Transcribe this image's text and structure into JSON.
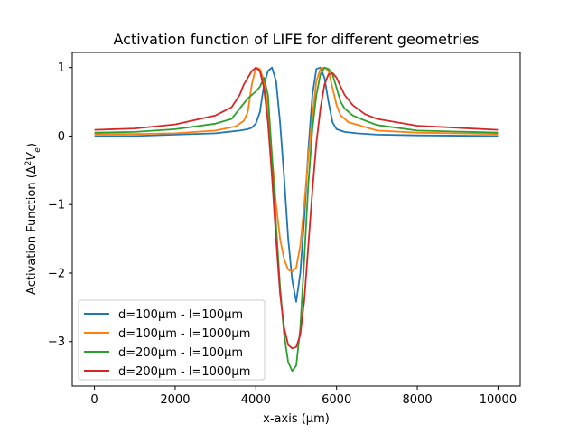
{
  "chart_data": {
    "type": "line",
    "title": "Activation function of LIFE for different geometries",
    "xlabel": "x-axis (µm)",
    "ylabel_main": "Activation Function (Δ",
    "ylabel_sup": "2",
    "ylabel_var": "V",
    "ylabel_sub": "e",
    "ylabel_end": ")",
    "xlim": [
      -550,
      10550
    ],
    "ylim": [
      -3.65,
      1.22
    ],
    "xticks": [
      0,
      2000,
      4000,
      6000,
      8000,
      10000
    ],
    "xtick_labels": [
      "0",
      "2000",
      "4000",
      "6000",
      "8000",
      "10000"
    ],
    "yticks": [
      1,
      0,
      -1,
      -2,
      -3
    ],
    "ytick_labels": [
      "1",
      "0",
      "−1",
      "−2",
      "−3"
    ],
    "grid": false,
    "legend_position": "lower-left",
    "series": [
      {
        "name": "d=100µm - l=100µm",
        "color": "#1f77b4",
        "x": [
          0,
          1000,
          2000,
          3000,
          3600,
          3800,
          3900,
          4000,
          4100,
          4200,
          4300,
          4400,
          4500,
          4600,
          4700,
          4800,
          4900,
          5000,
          5100,
          5200,
          5300,
          5400,
          5500,
          5600,
          5700,
          5800,
          5900,
          6000,
          6200,
          6500,
          7000,
          8000,
          10000
        ],
        "y": [
          0.0,
          0.0,
          0.02,
          0.04,
          0.08,
          0.1,
          0.12,
          0.18,
          0.35,
          0.75,
          0.95,
          1.0,
          0.8,
          0.2,
          -0.6,
          -1.5,
          -2.1,
          -2.42,
          -2.0,
          -1.2,
          -0.2,
          0.6,
          0.98,
          1.0,
          0.85,
          0.5,
          0.2,
          0.1,
          0.06,
          0.04,
          0.02,
          0.01,
          0.0
        ]
      },
      {
        "name": "d=100µm - l=1000µm",
        "color": "#ff7f0e",
        "x": [
          0,
          1000,
          2000,
          3000,
          3500,
          3700,
          3800,
          3900,
          4000,
          4100,
          4200,
          4300,
          4400,
          4500,
          4600,
          4700,
          4800,
          4900,
          5000,
          5100,
          5200,
          5300,
          5400,
          5500,
          5600,
          5700,
          5800,
          5900,
          6000,
          6100,
          6300,
          6600,
          7000,
          8000,
          10000
        ],
        "y": [
          0.03,
          0.03,
          0.04,
          0.08,
          0.14,
          0.22,
          0.35,
          0.75,
          1.0,
          0.98,
          0.8,
          0.4,
          -0.3,
          -1.0,
          -1.5,
          -1.8,
          -1.95,
          -1.98,
          -1.92,
          -1.6,
          -1.0,
          -0.3,
          0.3,
          0.8,
          0.98,
          1.0,
          0.95,
          0.7,
          0.45,
          0.3,
          0.2,
          0.15,
          0.08,
          0.05,
          0.03
        ]
      },
      {
        "name": "d=200µm - l=100µm",
        "color": "#2ca02c",
        "x": [
          0,
          1000,
          2000,
          3000,
          3400,
          3600,
          3800,
          3900,
          4000,
          4100,
          4200,
          4300,
          4400,
          4500,
          4600,
          4700,
          4800,
          4900,
          5000,
          5100,
          5200,
          5300,
          5400,
          5500,
          5600,
          5700,
          5800,
          5900,
          6000,
          6100,
          6200,
          6300,
          6400,
          6600,
          7000,
          8000,
          10000
        ],
        "y": [
          0.05,
          0.06,
          0.1,
          0.18,
          0.25,
          0.4,
          0.55,
          0.6,
          0.65,
          0.72,
          0.85,
          0.6,
          -0.3,
          -1.3,
          -2.2,
          -2.9,
          -3.3,
          -3.43,
          -3.35,
          -2.8,
          -1.8,
          -0.7,
          0.1,
          0.6,
          0.9,
          1.0,
          0.98,
          0.9,
          0.7,
          0.5,
          0.4,
          0.35,
          0.3,
          0.25,
          0.16,
          0.08,
          0.05
        ]
      },
      {
        "name": "d=200µm - l=1000µm",
        "color": "#d62728",
        "x": [
          0,
          1000,
          2000,
          3000,
          3400,
          3600,
          3700,
          3800,
          3900,
          4000,
          4100,
          4200,
          4300,
          4400,
          4500,
          4600,
          4700,
          4800,
          4900,
          5000,
          5100,
          5200,
          5300,
          5400,
          5500,
          5600,
          5700,
          5800,
          5900,
          6000,
          6100,
          6200,
          6400,
          6700,
          7000,
          8000,
          10000
        ],
        "y": [
          0.09,
          0.11,
          0.17,
          0.3,
          0.42,
          0.6,
          0.75,
          0.85,
          0.95,
          1.0,
          0.95,
          0.7,
          0.2,
          -0.6,
          -1.5,
          -2.3,
          -2.8,
          -3.05,
          -3.1,
          -3.08,
          -2.9,
          -2.4,
          -1.6,
          -0.8,
          -0.1,
          0.4,
          0.75,
          0.9,
          0.92,
          0.85,
          0.72,
          0.6,
          0.45,
          0.32,
          0.25,
          0.15,
          0.09
        ]
      }
    ]
  }
}
